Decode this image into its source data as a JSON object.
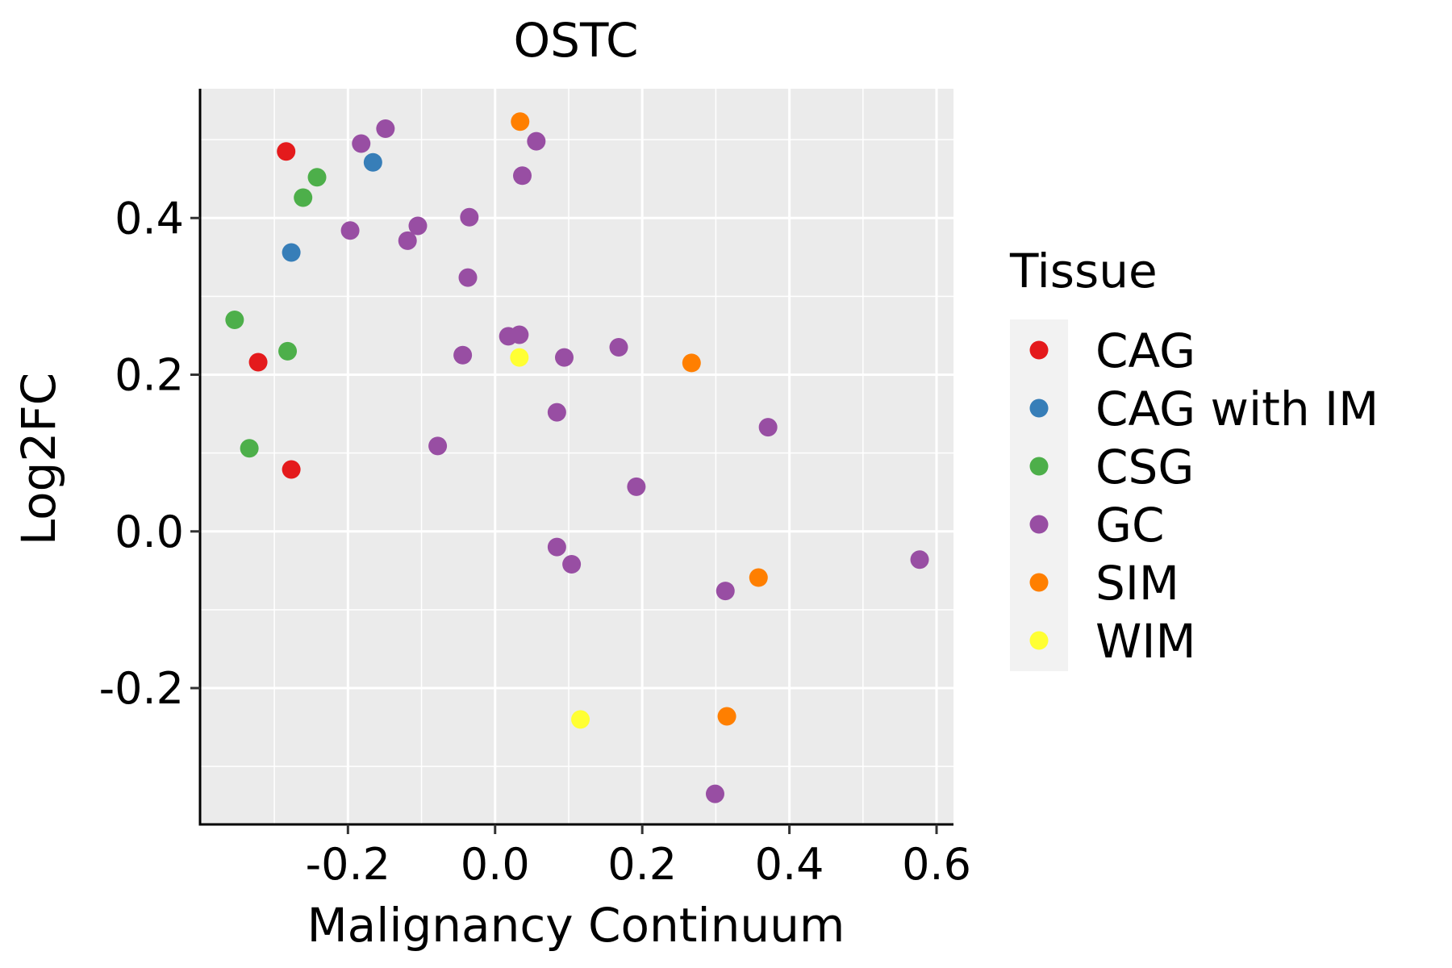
{
  "chart_data": {
    "type": "scatter",
    "title": "OSTC",
    "xlabel": "Malignancy Continuum",
    "ylabel": "Log2FC",
    "xlim": [
      -0.401,
      0.623
    ],
    "ylim": [
      -0.374,
      0.565
    ],
    "x_ticks": [
      -0.2,
      0.0,
      0.2,
      0.4,
      0.6
    ],
    "x_tick_labels": [
      "-0.2",
      "0.0",
      "0.2",
      "0.4",
      "0.6"
    ],
    "y_ticks": [
      -0.2,
      0.0,
      0.2,
      0.4
    ],
    "y_tick_labels": [
      "-0.2",
      "0.0",
      "0.2",
      "0.4"
    ],
    "x_minor": [
      -0.3,
      -0.1,
      0.1,
      0.3,
      0.5
    ],
    "y_minor": [
      -0.3,
      -0.1,
      0.1,
      0.3,
      0.5
    ],
    "grid": true,
    "legend": {
      "title": "Tissue",
      "position": "right"
    },
    "series": [
      {
        "name": "CAG",
        "color": "#E41A1C",
        "points": [
          [
            -0.284,
            0.485
          ],
          [
            -0.322,
            0.216
          ],
          [
            -0.277,
            0.079
          ]
        ]
      },
      {
        "name": "CAG with IM",
        "color": "#377EB8",
        "points": [
          [
            -0.166,
            0.471
          ],
          [
            -0.277,
            0.356
          ]
        ]
      },
      {
        "name": "CSG",
        "color": "#4DAF4A",
        "points": [
          [
            -0.242,
            0.452
          ],
          [
            -0.261,
            0.426
          ],
          [
            -0.354,
            0.27
          ],
          [
            -0.282,
            0.23
          ],
          [
            -0.334,
            0.106
          ]
        ]
      },
      {
        "name": "GC",
        "color": "#984EA3",
        "points": [
          [
            -0.182,
            0.495
          ],
          [
            -0.149,
            0.514
          ],
          [
            -0.197,
            0.384
          ],
          [
            -0.105,
            0.39
          ],
          [
            -0.119,
            0.371
          ],
          [
            -0.035,
            0.401
          ],
          [
            -0.037,
            0.324
          ],
          [
            -0.044,
            0.225
          ],
          [
            -0.078,
            0.109
          ],
          [
            0.056,
            0.498
          ],
          [
            0.037,
            0.454
          ],
          [
            0.018,
            0.249
          ],
          [
            0.033,
            0.251
          ],
          [
            0.094,
            0.222
          ],
          [
            0.168,
            0.235
          ],
          [
            0.084,
            0.152
          ],
          [
            0.192,
            0.057
          ],
          [
            0.371,
            0.133
          ],
          [
            0.084,
            -0.02
          ],
          [
            0.104,
            -0.042
          ],
          [
            0.313,
            -0.076
          ],
          [
            0.577,
            -0.036
          ],
          [
            0.299,
            -0.335
          ]
        ]
      },
      {
        "name": "SIM",
        "color": "#FF7F00",
        "points": [
          [
            0.034,
            0.523
          ],
          [
            0.267,
            0.215
          ],
          [
            0.358,
            -0.059
          ],
          [
            0.315,
            -0.236
          ]
        ]
      },
      {
        "name": "WIM",
        "color": "#FFFF33",
        "points": [
          [
            0.033,
            0.222
          ],
          [
            0.116,
            -0.24
          ]
        ]
      }
    ]
  }
}
